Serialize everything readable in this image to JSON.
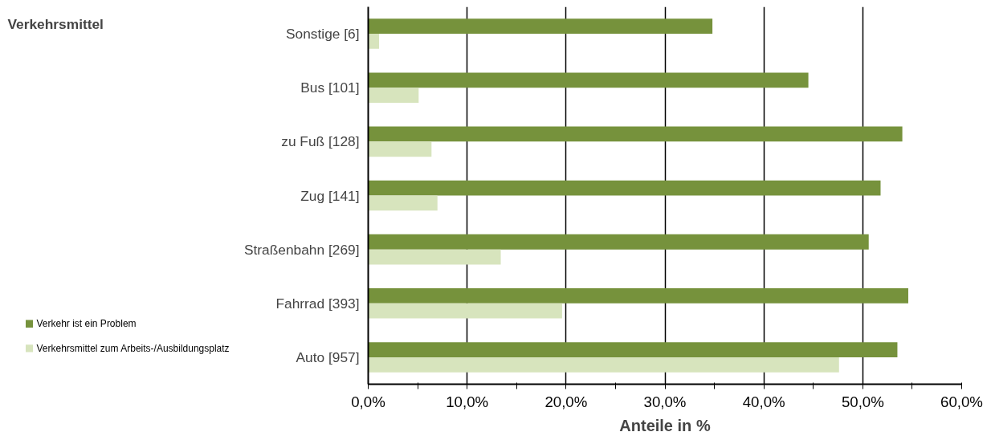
{
  "chart_data": {
    "type": "bar",
    "orientation": "horizontal",
    "annotations": [
      "Verkehrsmittel"
    ],
    "xlabel": "Anteile in %",
    "categories": [
      "Sonstige [6]",
      "Bus [101]",
      "zu Fuß [128]",
      "Zug [141]",
      "Straßenbahn [269]",
      "Fahrrad [393]",
      "Auto [957]"
    ],
    "series": [
      {
        "name": "Verkehr ist ein Problem",
        "color": "#76923c",
        "values": [
          34.8,
          44.5,
          54.0,
          51.8,
          50.6,
          54.6,
          53.5
        ]
      },
      {
        "name": "Verkehrsmittel zum Arbeits-/Ausbildungsplatz",
        "color": "#d7e4bd",
        "values": [
          1.1,
          5.1,
          6.4,
          7.0,
          13.4,
          19.6,
          47.6
        ]
      }
    ],
    "xlim": [
      0,
      60
    ],
    "xticks": [
      {
        "value": 0,
        "label": "0,0%"
      },
      {
        "value": 5,
        "label": null
      },
      {
        "value": 10,
        "label": "10,0%"
      },
      {
        "value": 15,
        "label": null
      },
      {
        "value": 20,
        "label": "20,0%"
      },
      {
        "value": 25,
        "label": null
      },
      {
        "value": 30,
        "label": "30,0%"
      },
      {
        "value": 35,
        "label": null
      },
      {
        "value": 40,
        "label": "40,0%"
      },
      {
        "value": 45,
        "label": null
      },
      {
        "value": 50,
        "label": "50,0%"
      },
      {
        "value": 55,
        "label": null
      },
      {
        "value": 60,
        "label": "60,0%"
      }
    ],
    "grid": "x",
    "legend": "bottom left"
  }
}
